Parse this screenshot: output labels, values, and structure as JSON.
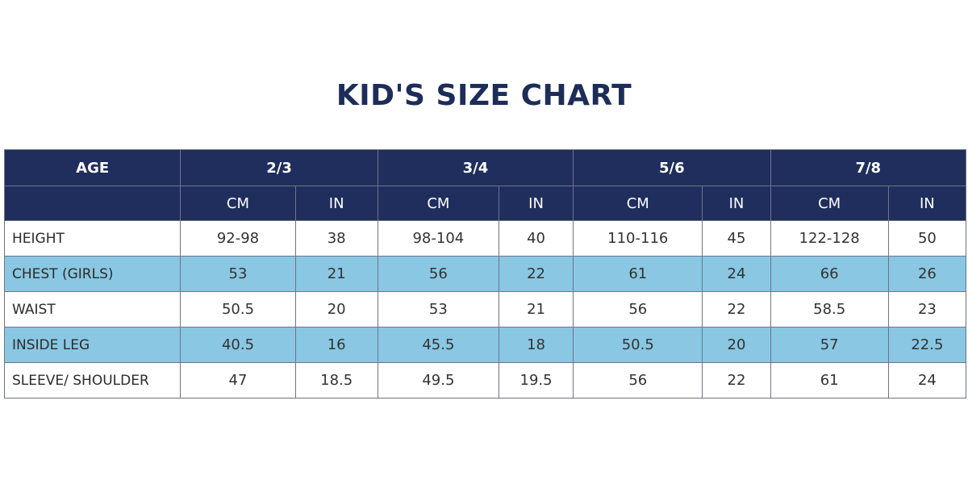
{
  "title": "KID'S SIZE CHART",
  "colors": {
    "header_bg": "#1f2e5c",
    "header_text": "#ffffff",
    "shaded_row": "#89c7e3",
    "title": "#1d2d5a"
  },
  "chart_data": {
    "type": "table",
    "title": "KID'S SIZE CHART",
    "row_header": "AGE",
    "age_groups": [
      "2/3",
      "3/4",
      "5/6",
      "7/8"
    ],
    "units": [
      "CM",
      "IN"
    ],
    "rows": [
      {
        "label": "HEIGHT",
        "cells": [
          "92-98",
          "38",
          "98-104",
          "40",
          "110-116",
          "45",
          "122-128",
          "50"
        ]
      },
      {
        "label": "CHEST (GIRLS)",
        "cells": [
          "53",
          "21",
          "56",
          "22",
          "61",
          "24",
          "66",
          "26"
        ]
      },
      {
        "label": "WAIST",
        "cells": [
          "50.5",
          "20",
          "53",
          "21",
          "56",
          "22",
          "58.5",
          "23"
        ]
      },
      {
        "label": "INSIDE LEG",
        "cells": [
          "40.5",
          "16",
          "45.5",
          "18",
          "50.5",
          "20",
          "57",
          "22.5"
        ]
      },
      {
        "label": "SLEEVE/ SHOULDER",
        "cells": [
          "47",
          "18.5",
          "49.5",
          "19.5",
          "56",
          "22",
          "61",
          "24"
        ]
      }
    ]
  }
}
